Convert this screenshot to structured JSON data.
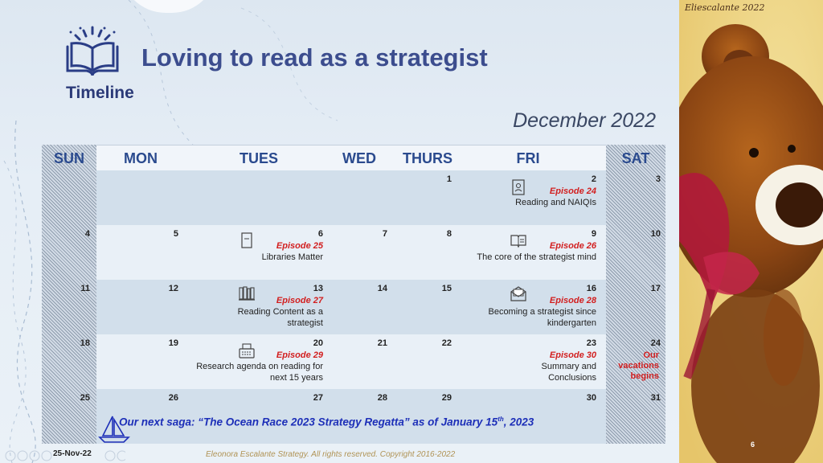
{
  "header": {
    "title": "Loving to read as a strategist",
    "subtitle": "Timeline",
    "month": "December 2022"
  },
  "calendar": {
    "day_headers": [
      "SUN",
      "MON",
      "TUES",
      "WED",
      "THURS",
      "FRI",
      "SAT"
    ],
    "weeks": [
      [
        null,
        null,
        null,
        null,
        "1",
        "2",
        "3"
      ],
      [
        "4",
        "5",
        "6",
        "7",
        "8",
        "9",
        "10"
      ],
      [
        "11",
        "12",
        "13",
        "14",
        "15",
        "16",
        "17"
      ],
      [
        "18",
        "19",
        "20",
        "21",
        "22",
        "23",
        "24"
      ],
      [
        "25",
        "26",
        "27",
        "28",
        "29",
        "30",
        "31"
      ]
    ],
    "events": [
      {
        "date": "2",
        "episode": "Episode 24",
        "text": "Reading and NAIQIs",
        "icon": "id-card-icon"
      },
      {
        "date": "6",
        "episode": "Episode 25",
        "text": "Libraries Matter",
        "icon": "document-icon"
      },
      {
        "date": "9",
        "episode": "Episode 26",
        "text": "The core of the strategist mind",
        "icon": "open-book-icon"
      },
      {
        "date": "13",
        "episode": "Episode 27",
        "text": "Reading Content as a strategist",
        "icon": "library-books-icon"
      },
      {
        "date": "16",
        "episode": "Episode 28",
        "text": "Becoming a strategist since kindergarten",
        "icon": "envelope-letter-icon"
      },
      {
        "date": "20",
        "episode": "Episode 29",
        "text": "Research agenda on reading for next 15 years",
        "icon": "typewriter-icon"
      },
      {
        "date": "23",
        "episode": "Episode 30",
        "text": "Summary and Conclusions",
        "icon": null
      }
    ],
    "vacation_note": "Our vacations begins",
    "saga_text": "Our next saga: “The Ocean Race 2023 Strategy Regatta” as of January 15",
    "saga_sup": "th",
    "saga_end": ", 2023"
  },
  "footer": {
    "date": "25-Nov-22",
    "copyright": "Eleonora Escalante Strategy. All rights reserved. Copyright 2016-2022",
    "slide_number": "6"
  },
  "painting": {
    "signature": "Eliescalante 2022"
  },
  "colors": {
    "title": "#3c4d8e",
    "header_text": "#2a4a8e",
    "episode": "#d21f1f",
    "saga": "#1d2fb8",
    "copyright": "#b09355"
  }
}
